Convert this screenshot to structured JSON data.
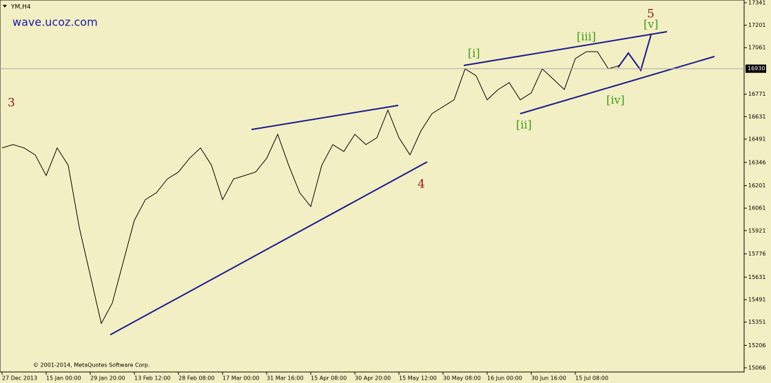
{
  "chart_data": {
    "type": "line",
    "title": "YM,H4",
    "watermark": "wave.ucoz.com",
    "copyright": "© 2001-2014, MetaQuotes Software Corp.",
    "categories": [
      "27 Dec 2013",
      null,
      null,
      null,
      "15 Jan 00:00",
      null,
      null,
      null,
      "29 Jan 20:00",
      null,
      null,
      null,
      "13 Feb 12:00",
      null,
      null,
      null,
      "28 Feb 08:00",
      null,
      null,
      null,
      "17 Mar 00:00",
      null,
      null,
      null,
      "31 Mar 16:00",
      null,
      null,
      null,
      "15 Apr 08:00",
      null,
      null,
      null,
      "30 Apr 20:00",
      null,
      null,
      null,
      "15 May 12:00",
      null,
      null,
      null,
      "30 May 08:00",
      null,
      null,
      null,
      "16 Jun 00:00",
      null,
      null,
      null,
      "30 Jun 16:00",
      null,
      null,
      null,
      "15 Jul 08:00",
      null,
      null,
      null,
      null
    ],
    "series": [
      {
        "name": "YM",
        "color": "#000000",
        "values": [
          16436,
          16457,
          16436,
          16393,
          16264,
          16436,
          16328,
          15942,
          15642,
          15342,
          15470,
          15728,
          15985,
          16114,
          16157,
          16243,
          16286,
          16371,
          16436,
          16328,
          16114,
          16243,
          16264,
          16286,
          16371,
          16521,
          16328,
          16157,
          16071,
          16328,
          16457,
          16414,
          16521,
          16457,
          16500,
          16672,
          16500,
          16393,
          16543,
          16650,
          16693,
          16736,
          16929,
          16886,
          16736,
          16800,
          16843,
          16736,
          16779,
          16929,
          16865,
          16800,
          16993,
          17036,
          17036,
          16929,
          16950
        ]
      }
    ],
    "current_price": 16930,
    "ylim": [
      15040,
      17358
    ],
    "yticks": [
      15066,
      15206,
      15351,
      15491,
      15631,
      15776,
      15921,
      16061,
      16201,
      16346,
      16491,
      16631,
      16771,
      17061,
      17201,
      17341
    ],
    "grid": false,
    "annotations": [
      "3",
      "4",
      "5",
      "[i]",
      "[ii]",
      "[iii]",
      "[iv]",
      "[v]"
    ]
  }
}
